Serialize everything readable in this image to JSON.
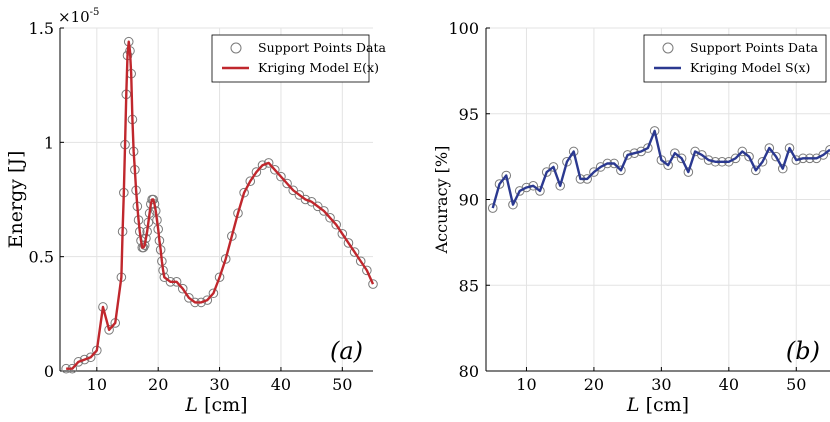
{
  "chart_data": [
    {
      "type": "line",
      "panel_label": "(a)",
      "xlabel_var": "L",
      "xlabel_unit": "[cm]",
      "ylabel": "Energy [J]",
      "y_multiplier_label": "×10",
      "y_multiplier_exp": "-5",
      "xlim": [
        4,
        55
      ],
      "ylim": [
        0,
        1.5
      ],
      "xticks": [
        10,
        20,
        30,
        40,
        50
      ],
      "yticks": [
        0,
        0.5,
        1,
        1.5
      ],
      "ytick_labels": [
        "0",
        "0.5",
        "1",
        "1.5"
      ],
      "grid": true,
      "legend_position": "top-right",
      "series": [
        {
          "name": "Support Points Data",
          "kind": "markers",
          "color": "#7a7a7a",
          "x": [
            5,
            6,
            7,
            8,
            9,
            10,
            11,
            12,
            13,
            14,
            14.2,
            14.4,
            14.6,
            14.8,
            15,
            15.2,
            15.4,
            15.6,
            15.8,
            16,
            16.2,
            16.4,
            16.6,
            16.8,
            17,
            17.2,
            17.4,
            17.6,
            17.8,
            18,
            18.2,
            18.4,
            18.6,
            18.8,
            19,
            19.2,
            19.4,
            19.6,
            19.8,
            20,
            20.2,
            20.4,
            20.6,
            20.8,
            21,
            22,
            23,
            24,
            25,
            26,
            27,
            28,
            29,
            30,
            31,
            32,
            33,
            34,
            35,
            36,
            37,
            38,
            39,
            40,
            41,
            42,
            43,
            44,
            45,
            46,
            47,
            48,
            49,
            50,
            51,
            52,
            53,
            54,
            55
          ],
          "y": [
            0.01,
            0.01,
            0.04,
            0.05,
            0.06,
            0.09,
            0.28,
            0.18,
            0.21,
            0.41,
            0.61,
            0.78,
            0.99,
            1.21,
            1.38,
            1.44,
            1.4,
            1.3,
            1.1,
            0.96,
            0.88,
            0.79,
            0.72,
            0.66,
            0.61,
            0.57,
            0.54,
            0.54,
            0.55,
            0.58,
            0.61,
            0.65,
            0.69,
            0.73,
            0.75,
            0.75,
            0.73,
            0.7,
            0.66,
            0.62,
            0.57,
            0.53,
            0.48,
            0.44,
            0.41,
            0.39,
            0.39,
            0.36,
            0.32,
            0.3,
            0.3,
            0.31,
            0.34,
            0.41,
            0.49,
            0.59,
            0.69,
            0.78,
            0.83,
            0.87,
            0.9,
            0.91,
            0.88,
            0.85,
            0.82,
            0.79,
            0.77,
            0.75,
            0.74,
            0.72,
            0.7,
            0.67,
            0.64,
            0.6,
            0.56,
            0.52,
            0.48,
            0.44,
            0.38
          ]
        },
        {
          "name": "Kriging Model E(x)",
          "kind": "line",
          "color": "#c0272d",
          "x": [
            5,
            6,
            7,
            8,
            9,
            10,
            11,
            12,
            13,
            14,
            14.2,
            14.4,
            14.6,
            14.8,
            15,
            15.2,
            15.4,
            15.6,
            15.8,
            16,
            16.2,
            16.4,
            16.6,
            16.8,
            17,
            17.2,
            17.4,
            17.6,
            17.8,
            18,
            18.2,
            18.4,
            18.6,
            18.8,
            19,
            19.2,
            19.4,
            19.6,
            19.8,
            20,
            20.2,
            20.4,
            20.6,
            20.8,
            21,
            22,
            23,
            24,
            25,
            26,
            27,
            28,
            29,
            30,
            31,
            32,
            33,
            34,
            35,
            36,
            37,
            38,
            39,
            40,
            41,
            42,
            43,
            44,
            45,
            46,
            47,
            48,
            49,
            50,
            51,
            52,
            53,
            54,
            55
          ],
          "y": [
            0.01,
            0.01,
            0.04,
            0.05,
            0.06,
            0.09,
            0.28,
            0.18,
            0.21,
            0.41,
            0.61,
            0.78,
            0.99,
            1.21,
            1.38,
            1.44,
            1.4,
            1.3,
            1.1,
            0.96,
            0.88,
            0.79,
            0.72,
            0.66,
            0.61,
            0.57,
            0.54,
            0.54,
            0.55,
            0.58,
            0.61,
            0.65,
            0.69,
            0.73,
            0.75,
            0.75,
            0.73,
            0.7,
            0.66,
            0.62,
            0.57,
            0.53,
            0.48,
            0.44,
            0.41,
            0.39,
            0.39,
            0.36,
            0.32,
            0.3,
            0.3,
            0.31,
            0.34,
            0.41,
            0.49,
            0.59,
            0.69,
            0.78,
            0.83,
            0.87,
            0.9,
            0.91,
            0.88,
            0.85,
            0.82,
            0.79,
            0.77,
            0.75,
            0.74,
            0.72,
            0.7,
            0.67,
            0.64,
            0.6,
            0.56,
            0.52,
            0.48,
            0.44,
            0.38
          ]
        }
      ]
    },
    {
      "type": "line",
      "panel_label": "(b)",
      "xlabel_var": "L",
      "xlabel_unit": "[cm]",
      "ylabel": "Accuracy [%]",
      "xlim": [
        4,
        55
      ],
      "ylim": [
        80,
        100
      ],
      "xticks": [
        10,
        20,
        30,
        40,
        50
      ],
      "yticks": [
        80,
        85,
        90,
        95,
        100
      ],
      "ytick_labels": [
        "80",
        "85",
        "90",
        "95",
        "100"
      ],
      "grid": true,
      "legend_position": "top-right",
      "series": [
        {
          "name": "Support Points Data",
          "kind": "markers",
          "color": "#7a7a7a",
          "x": [
            5,
            6,
            7,
            8,
            9,
            10,
            11,
            12,
            13,
            14,
            15,
            16,
            17,
            18,
            19,
            20,
            21,
            22,
            23,
            24,
            25,
            26,
            27,
            28,
            29,
            30,
            31,
            32,
            33,
            34,
            35,
            36,
            37,
            38,
            39,
            40,
            41,
            42,
            43,
            44,
            45,
            46,
            47,
            48,
            49,
            50,
            51,
            52,
            53,
            54,
            55
          ],
          "y": [
            89.5,
            90.9,
            91.4,
            89.7,
            90.5,
            90.7,
            90.8,
            90.5,
            91.6,
            91.9,
            90.8,
            92.2,
            92.8,
            91.2,
            91.2,
            91.6,
            91.9,
            92.1,
            92.1,
            91.7,
            92.6,
            92.7,
            92.8,
            93.0,
            94.0,
            92.3,
            92.0,
            92.7,
            92.4,
            91.6,
            92.8,
            92.6,
            92.3,
            92.2,
            92.2,
            92.2,
            92.4,
            92.8,
            92.5,
            91.7,
            92.2,
            93.0,
            92.5,
            91.8,
            93.0,
            92.3,
            92.4,
            92.4,
            92.4,
            92.6,
            92.9
          ]
        },
        {
          "name": "Kriging Model S(x)",
          "kind": "line",
          "color": "#2b3990",
          "x": [
            5,
            6,
            7,
            8,
            9,
            10,
            11,
            12,
            13,
            14,
            15,
            16,
            17,
            18,
            19,
            20,
            21,
            22,
            23,
            24,
            25,
            26,
            27,
            28,
            29,
            30,
            31,
            32,
            33,
            34,
            35,
            36,
            37,
            38,
            39,
            40,
            41,
            42,
            43,
            44,
            45,
            46,
            47,
            48,
            49,
            50,
            51,
            52,
            53,
            54,
            55
          ],
          "y": [
            89.5,
            90.9,
            91.4,
            89.7,
            90.5,
            90.7,
            90.8,
            90.5,
            91.6,
            91.9,
            90.8,
            92.2,
            92.8,
            91.2,
            91.2,
            91.6,
            91.9,
            92.1,
            92.1,
            91.7,
            92.6,
            92.7,
            92.8,
            93.0,
            94.0,
            92.3,
            92.0,
            92.7,
            92.4,
            91.6,
            92.8,
            92.6,
            92.3,
            92.2,
            92.2,
            92.2,
            92.4,
            92.8,
            92.5,
            91.7,
            92.2,
            93.0,
            92.5,
            91.8,
            93.0,
            92.3,
            92.4,
            92.4,
            92.4,
            92.6,
            92.9
          ]
        }
      ]
    }
  ]
}
